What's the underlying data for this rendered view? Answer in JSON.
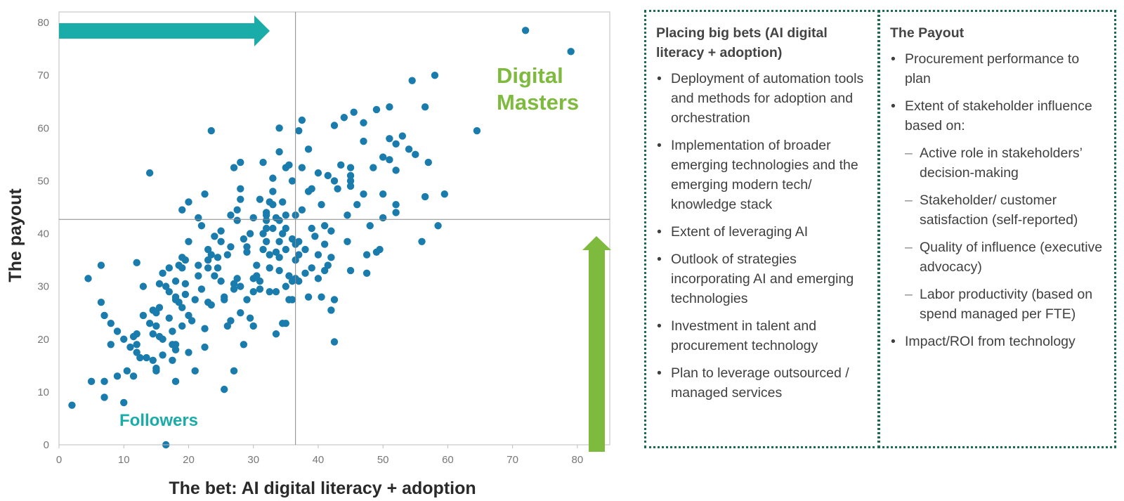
{
  "chart_data": {
    "type": "scatter",
    "xlabel": "The bet: AI digital literacy + adoption",
    "ylabel": "The payout",
    "xlim": [
      0,
      85
    ],
    "ylim": [
      0,
      82
    ],
    "xticks": [
      "0",
      "10",
      "20",
      "30",
      "40",
      "50",
      "60",
      "70",
      "80"
    ],
    "yticks": [
      "0",
      "10",
      "20",
      "30",
      "40",
      "50",
      "60",
      "70",
      "80"
    ],
    "divider": {
      "x": 36.5,
      "y": 42.7
    },
    "annotations": {
      "top_right": "Digital Masters",
      "bottom_left": "Followers"
    },
    "colors": {
      "points": "#1a7cad",
      "teal_arrow": "#1aaca8",
      "green_arrow": "#7dba3d",
      "masters_label": "#7dba3d",
      "followers_label": "#1aaca8",
      "axis_label": "#2a2a2a"
    },
    "points": [
      [
        2,
        7.5
      ],
      [
        4.5,
        31.5
      ],
      [
        5,
        12
      ],
      [
        6.5,
        34
      ],
      [
        6.5,
        27
      ],
      [
        7,
        24.5
      ],
      [
        7,
        9
      ],
      [
        7,
        12
      ],
      [
        8,
        23
      ],
      [
        8,
        19
      ],
      [
        9,
        13
      ],
      [
        9,
        21.5
      ],
      [
        10,
        20
      ],
      [
        10,
        8
      ],
      [
        10.5,
        14
      ],
      [
        11,
        18.5
      ],
      [
        11.5,
        13
      ],
      [
        11.5,
        20.5
      ],
      [
        12,
        21
      ],
      [
        12,
        19
      ],
      [
        12,
        17.5
      ],
      [
        12,
        34.5
      ],
      [
        12.5,
        16.5
      ],
      [
        13,
        30
      ],
      [
        13,
        24.5
      ],
      [
        13.5,
        16.5
      ],
      [
        14,
        51.5
      ],
      [
        14,
        23
      ],
      [
        14.5,
        16
      ],
      [
        14.5,
        25.5
      ],
      [
        14.5,
        21
      ],
      [
        15,
        14.5
      ],
      [
        15,
        25
      ],
      [
        15,
        22.5
      ],
      [
        15,
        14
      ],
      [
        15.5,
        30.5
      ],
      [
        15.5,
        26
      ],
      [
        15.5,
        20.5
      ],
      [
        16,
        20
      ],
      [
        16,
        32.5
      ],
      [
        16,
        17
      ],
      [
        16.5,
        0
      ],
      [
        16.5,
        30
      ],
      [
        17,
        29
      ],
      [
        17,
        24
      ],
      [
        17,
        33.5
      ],
      [
        17.5,
        19
      ],
      [
        17.5,
        21.5
      ],
      [
        17.5,
        16
      ],
      [
        18,
        31
      ],
      [
        18,
        27.5
      ],
      [
        18,
        28
      ],
      [
        18,
        19
      ],
      [
        18,
        18
      ],
      [
        18,
        12
      ],
      [
        18.5,
        27
      ],
      [
        18.5,
        34
      ],
      [
        19,
        33.5
      ],
      [
        19,
        26
      ],
      [
        19,
        44.5
      ],
      [
        19,
        35.5
      ],
      [
        19,
        22.5
      ],
      [
        19.5,
        35
      ],
      [
        19.5,
        30.5
      ],
      [
        19.5,
        28.5
      ],
      [
        20,
        38.5
      ],
      [
        20,
        46
      ],
      [
        20,
        24.5
      ],
      [
        20,
        17.5
      ],
      [
        20.5,
        23.5
      ],
      [
        21,
        27.5
      ],
      [
        21,
        14
      ],
      [
        21.5,
        32
      ],
      [
        21.5,
        43
      ],
      [
        21.5,
        34
      ],
      [
        22,
        29.5
      ],
      [
        22,
        41.5
      ],
      [
        22.5,
        47.5
      ],
      [
        22.5,
        18.5
      ],
      [
        22.5,
        22
      ],
      [
        23,
        37
      ],
      [
        23,
        35
      ],
      [
        23,
        33.5
      ],
      [
        23,
        27
      ],
      [
        23.5,
        59.5
      ],
      [
        23.5,
        36
      ],
      [
        23.5,
        26.5
      ],
      [
        24,
        32
      ],
      [
        24,
        39.5
      ],
      [
        24.5,
        33.5
      ],
      [
        24.5,
        35.5
      ],
      [
        25,
        40.5
      ],
      [
        25,
        31
      ],
      [
        25,
        38.5
      ],
      [
        25.5,
        10.5
      ],
      [
        25.5,
        28
      ],
      [
        25.5,
        27.5
      ],
      [
        26,
        36
      ],
      [
        26,
        22.5
      ],
      [
        26.5,
        43.5
      ],
      [
        26.5,
        37.5
      ],
      [
        26.5,
        23.5
      ],
      [
        27,
        30.5
      ],
      [
        27,
        14
      ],
      [
        27,
        29.5
      ],
      [
        27,
        52.5
      ],
      [
        27.5,
        42.5
      ],
      [
        27.5,
        44.5
      ],
      [
        27.5,
        31.5
      ],
      [
        28,
        48.5
      ],
      [
        28,
        53.5
      ],
      [
        28,
        46.5
      ],
      [
        28,
        30
      ],
      [
        28,
        25
      ],
      [
        28.5,
        39
      ],
      [
        28.5,
        19
      ],
      [
        29,
        37.5
      ],
      [
        29,
        36.5
      ],
      [
        29,
        27.5
      ],
      [
        29.5,
        24
      ],
      [
        29.5,
        40
      ],
      [
        30,
        29
      ],
      [
        30,
        22.5
      ],
      [
        30,
        43
      ],
      [
        30,
        31.5
      ],
      [
        30.5,
        34
      ],
      [
        30.5,
        32
      ],
      [
        31,
        46.5
      ],
      [
        31,
        31
      ],
      [
        31,
        29.5
      ],
      [
        31.5,
        53.5
      ],
      [
        31.5,
        40
      ],
      [
        31.5,
        37
      ],
      [
        32,
        44
      ],
      [
        32,
        43.5
      ],
      [
        32,
        41
      ],
      [
        32,
        38.5
      ],
      [
        32,
        42.5
      ],
      [
        32.5,
        33.5
      ],
      [
        32.5,
        29
      ],
      [
        32.5,
        36
      ],
      [
        32.5,
        46
      ],
      [
        33,
        48
      ],
      [
        33,
        50.5
      ],
      [
        33,
        41
      ],
      [
        33,
        45.5
      ],
      [
        33.5,
        43
      ],
      [
        33.5,
        36.5
      ],
      [
        33.5,
        21
      ],
      [
        33.5,
        29
      ],
      [
        34,
        60
      ],
      [
        34,
        42.5
      ],
      [
        34,
        55.5
      ],
      [
        34,
        38.5
      ],
      [
        34,
        35.5
      ],
      [
        34,
        33
      ],
      [
        34.5,
        46
      ],
      [
        34.5,
        40
      ],
      [
        34.5,
        23
      ],
      [
        35,
        43.5
      ],
      [
        35,
        52.5
      ],
      [
        35,
        41
      ],
      [
        35,
        37
      ],
      [
        35,
        30
      ],
      [
        35,
        23
      ],
      [
        35.5,
        53
      ],
      [
        35.5,
        32
      ],
      [
        35.5,
        27.5
      ],
      [
        36,
        50
      ],
      [
        36,
        39
      ],
      [
        36,
        31
      ],
      [
        36,
        27.5
      ],
      [
        36.5,
        43.5
      ],
      [
        36.5,
        38
      ],
      [
        36.5,
        35
      ],
      [
        36.5,
        31.5
      ],
      [
        37,
        59.5
      ],
      [
        37,
        38.5
      ],
      [
        37,
        36
      ],
      [
        37,
        31
      ],
      [
        37.5,
        61.5
      ],
      [
        37.5,
        52.5
      ],
      [
        37.5,
        44.5
      ],
      [
        38,
        32.5
      ],
      [
        38,
        37
      ],
      [
        38.5,
        28
      ],
      [
        38.5,
        48
      ],
      [
        38.5,
        56
      ],
      [
        39,
        48.5
      ],
      [
        39,
        33.5
      ],
      [
        39,
        41
      ],
      [
        39.5,
        39.5
      ],
      [
        40,
        51.5
      ],
      [
        40,
        36
      ],
      [
        40,
        31.5
      ],
      [
        40.5,
        45.5
      ],
      [
        40.5,
        28
      ],
      [
        41,
        41.5
      ],
      [
        41,
        33
      ],
      [
        41,
        38
      ],
      [
        41.5,
        51
      ],
      [
        41.5,
        34
      ],
      [
        42,
        25.5
      ],
      [
        42,
        35.5
      ],
      [
        42,
        40.5
      ],
      [
        42.5,
        19.5
      ],
      [
        42.5,
        27.5
      ],
      [
        42.5,
        60.5
      ],
      [
        42.5,
        50
      ],
      [
        43,
        48.5
      ],
      [
        43.5,
        53
      ],
      [
        44,
        62
      ],
      [
        44.5,
        43.5
      ],
      [
        44.5,
        38.5
      ],
      [
        45,
        52.5
      ],
      [
        45,
        51
      ],
      [
        45,
        50
      ],
      [
        45,
        49
      ],
      [
        45,
        33
      ],
      [
        45.5,
        63
      ],
      [
        46,
        45.5
      ],
      [
        47,
        61
      ],
      [
        47,
        47.5
      ],
      [
        47,
        57.5
      ],
      [
        47.5,
        36
      ],
      [
        47.5,
        32.5
      ],
      [
        48,
        41.5
      ],
      [
        48.5,
        52.5
      ],
      [
        49,
        63.5
      ],
      [
        49,
        36.5
      ],
      [
        49.5,
        37
      ],
      [
        50,
        54.5
      ],
      [
        50,
        47.5
      ],
      [
        50,
        43
      ],
      [
        51,
        64
      ],
      [
        51,
        58
      ],
      [
        51,
        54
      ],
      [
        52,
        52
      ],
      [
        52,
        57
      ],
      [
        52,
        44
      ],
      [
        52,
        45.5
      ],
      [
        53,
        58.5
      ],
      [
        54,
        56
      ],
      [
        54.5,
        69
      ],
      [
        55,
        55
      ],
      [
        56,
        38.5
      ],
      [
        56.5,
        64
      ],
      [
        56.5,
        47
      ],
      [
        57,
        53.5
      ],
      [
        58,
        70
      ],
      [
        58.5,
        41.5
      ],
      [
        59.5,
        47.5
      ],
      [
        64.5,
        59.5
      ],
      [
        72,
        78.5
      ],
      [
        79,
        74.5
      ]
    ]
  },
  "panel_left": {
    "title": "Placing big bets (AI digital literacy + adoption)",
    "items": [
      "Deployment of automation tools and methods for adoption and orchestration",
      "Implementation of broader emerging technologies and the emerging modern tech/ knowledge stack",
      "Extent of leveraging AI",
      "Outlook of strategies incorporating AI and emerging technologies",
      "Investment in talent and procurement technology",
      "Plan to leverage outsourced / managed services"
    ]
  },
  "panel_right": {
    "title": "The Payout",
    "items": [
      {
        "text": "Procurement performance to plan",
        "sub": false
      },
      {
        "text": "Extent of stakeholder influence based on:",
        "sub": false
      },
      {
        "text": "Active role in stakeholders’ decision-making",
        "sub": true
      },
      {
        "text": "Stakeholder/ customer satisfaction (self-reported)",
        "sub": true
      },
      {
        "text": "Quality of influence (executive advocacy)",
        "sub": true
      },
      {
        "text": "Labor productivity (based on spend managed per FTE)",
        "sub": true
      },
      {
        "text": "Impact/ROI from technology",
        "sub": false
      }
    ]
  }
}
